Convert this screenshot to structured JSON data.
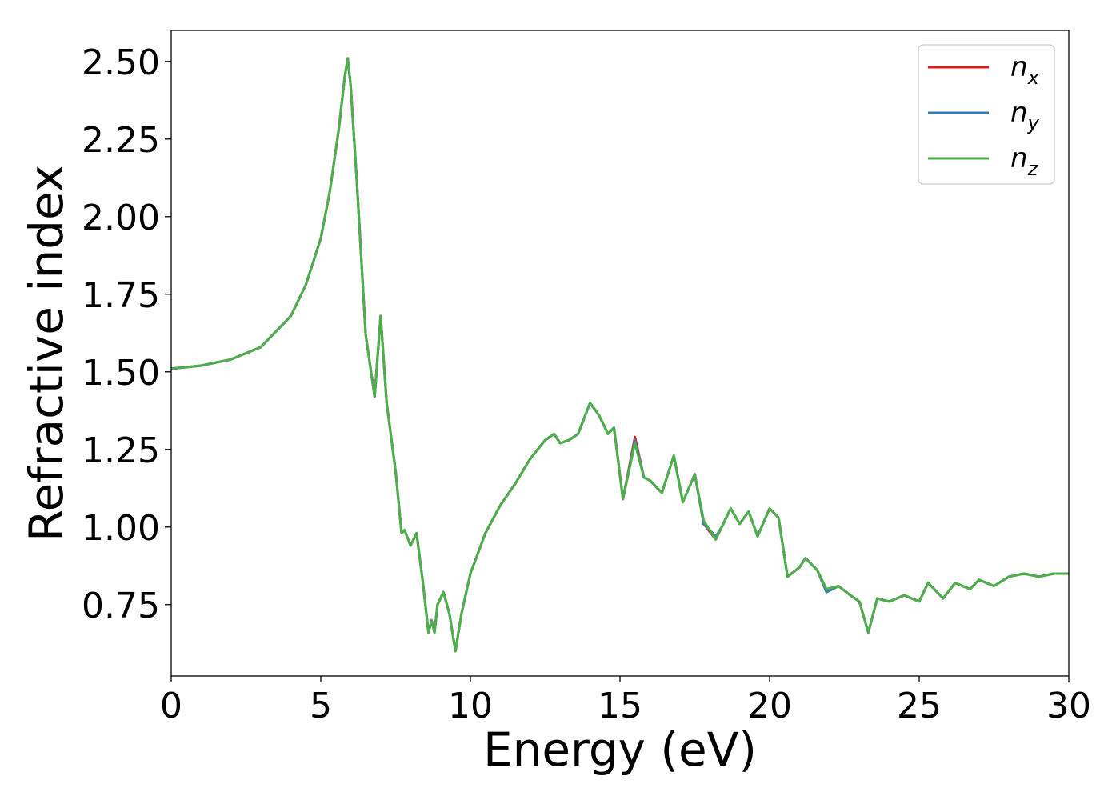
{
  "chart_data": {
    "type": "line",
    "title": "",
    "xlabel": "Energy (eV)",
    "ylabel": "Refractive index",
    "xlim": [
      0,
      30
    ],
    "ylim": [
      0.52,
      2.6
    ],
    "xticks": [
      0,
      5,
      10,
      15,
      20,
      25,
      30
    ],
    "xtick_labels": [
      "0",
      "5",
      "10",
      "15",
      "20",
      "25",
      "30"
    ],
    "yticks": [
      0.75,
      1.0,
      1.25,
      1.5,
      1.75,
      2.0,
      2.25,
      2.5
    ],
    "ytick_labels": [
      "0.75",
      "1.00",
      "1.25",
      "1.50",
      "1.75",
      "2.00",
      "2.25",
      "2.50"
    ],
    "grid": false,
    "legend_position": "top-right",
    "x": [
      0,
      1,
      2,
      3,
      4,
      4.5,
      5,
      5.3,
      5.6,
      5.8,
      5.9,
      6.0,
      6.2,
      6.5,
      6.8,
      7.0,
      7.2,
      7.5,
      7.7,
      7.8,
      8.0,
      8.2,
      8.4,
      8.6,
      8.7,
      8.8,
      8.9,
      9.1,
      9.3,
      9.5,
      9.7,
      10.0,
      10.5,
      11.0,
      11.5,
      12.0,
      12.5,
      12.8,
      13.0,
      13.3,
      13.6,
      14.0,
      14.3,
      14.6,
      14.8,
      15.1,
      15.5,
      15.8,
      16.0,
      16.4,
      16.8,
      17.1,
      17.5,
      17.8,
      18.2,
      18.4,
      18.7,
      19.0,
      19.3,
      19.6,
      20.0,
      20.3,
      20.6,
      21.0,
      21.2,
      21.6,
      21.9,
      22.3,
      22.7,
      23.0,
      23.3,
      23.6,
      24.0,
      24.5,
      25.0,
      25.3,
      25.8,
      26.2,
      26.7,
      27.0,
      27.5,
      28.0,
      28.5,
      29.0,
      29.5,
      30.0
    ],
    "series": [
      {
        "name": "n_x",
        "color": "#e41a1c",
        "values": [
          1.51,
          1.52,
          1.54,
          1.58,
          1.68,
          1.78,
          1.93,
          2.08,
          2.28,
          2.45,
          2.51,
          2.42,
          2.12,
          1.62,
          1.42,
          1.68,
          1.4,
          1.18,
          0.98,
          0.99,
          0.94,
          0.98,
          0.83,
          0.66,
          0.7,
          0.66,
          0.75,
          0.79,
          0.72,
          0.6,
          0.72,
          0.85,
          0.98,
          1.07,
          1.14,
          1.22,
          1.28,
          1.3,
          1.27,
          1.28,
          1.3,
          1.4,
          1.36,
          1.3,
          1.32,
          1.09,
          1.29,
          1.16,
          1.15,
          1.11,
          1.23,
          1.08,
          1.17,
          1.01,
          0.96,
          1.0,
          1.06,
          1.01,
          1.05,
          0.97,
          1.06,
          1.03,
          0.84,
          0.87,
          0.9,
          0.86,
          0.79,
          0.81,
          0.78,
          0.76,
          0.66,
          0.77,
          0.76,
          0.78,
          0.76,
          0.82,
          0.77,
          0.82,
          0.8,
          0.83,
          0.81,
          0.84,
          0.85,
          0.84,
          0.85,
          0.85
        ]
      },
      {
        "name": "n_y",
        "color": "#377eb8",
        "values": [
          1.51,
          1.52,
          1.54,
          1.58,
          1.68,
          1.78,
          1.93,
          2.08,
          2.28,
          2.45,
          2.51,
          2.42,
          2.12,
          1.62,
          1.42,
          1.68,
          1.4,
          1.18,
          0.98,
          0.99,
          0.94,
          0.98,
          0.83,
          0.66,
          0.7,
          0.66,
          0.75,
          0.79,
          0.72,
          0.6,
          0.72,
          0.85,
          0.98,
          1.07,
          1.14,
          1.22,
          1.28,
          1.3,
          1.27,
          1.28,
          1.3,
          1.4,
          1.36,
          1.3,
          1.32,
          1.09,
          1.28,
          1.16,
          1.15,
          1.11,
          1.23,
          1.08,
          1.17,
          1.01,
          0.97,
          1.0,
          1.06,
          1.01,
          1.05,
          0.97,
          1.06,
          1.03,
          0.84,
          0.87,
          0.9,
          0.86,
          0.79,
          0.81,
          0.78,
          0.76,
          0.66,
          0.77,
          0.76,
          0.78,
          0.76,
          0.82,
          0.77,
          0.82,
          0.8,
          0.83,
          0.81,
          0.84,
          0.85,
          0.84,
          0.85,
          0.85
        ]
      },
      {
        "name": "n_z",
        "color": "#4daf4a",
        "values": [
          1.51,
          1.52,
          1.54,
          1.58,
          1.68,
          1.78,
          1.93,
          2.08,
          2.28,
          2.45,
          2.51,
          2.42,
          2.12,
          1.62,
          1.42,
          1.68,
          1.4,
          1.18,
          0.98,
          0.99,
          0.94,
          0.98,
          0.83,
          0.66,
          0.7,
          0.66,
          0.75,
          0.79,
          0.72,
          0.6,
          0.72,
          0.85,
          0.98,
          1.07,
          1.14,
          1.22,
          1.28,
          1.3,
          1.27,
          1.28,
          1.3,
          1.4,
          1.36,
          1.3,
          1.32,
          1.09,
          1.27,
          1.16,
          1.15,
          1.11,
          1.23,
          1.08,
          1.17,
          1.02,
          0.96,
          1.0,
          1.06,
          1.01,
          1.05,
          0.97,
          1.06,
          1.03,
          0.84,
          0.87,
          0.9,
          0.86,
          0.8,
          0.81,
          0.78,
          0.76,
          0.66,
          0.77,
          0.76,
          0.78,
          0.76,
          0.82,
          0.77,
          0.82,
          0.8,
          0.83,
          0.81,
          0.84,
          0.85,
          0.84,
          0.85,
          0.85
        ]
      }
    ],
    "legend": [
      {
        "base": "n",
        "sub": "x",
        "color": "#e41a1c"
      },
      {
        "base": "n",
        "sub": "y",
        "color": "#377eb8"
      },
      {
        "base": "n",
        "sub": "z",
        "color": "#4daf4a"
      }
    ]
  }
}
